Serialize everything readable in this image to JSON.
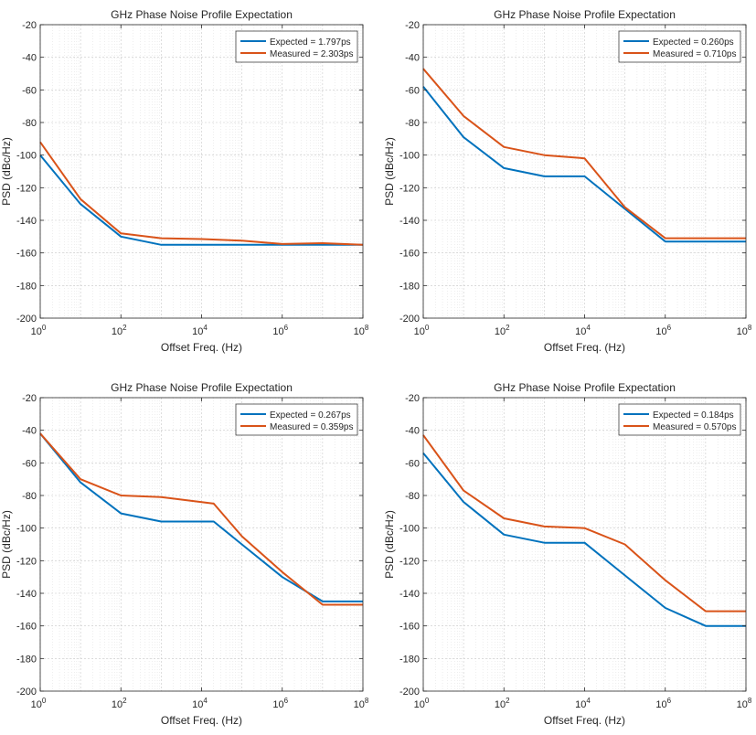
{
  "chart_data": [
    {
      "type": "line",
      "title": "GHz Phase Noise Profile Expectation",
      "xlabel": "Offset Freq. (Hz)",
      "ylabel": "PSD (dBc/Hz)",
      "xscale": "log",
      "xlim": [
        1,
        100000000
      ],
      "ylim": [
        -200,
        -20
      ],
      "grid": true,
      "legend_position": "top-right",
      "xticks": [
        {
          "value": 1,
          "base": "10",
          "exp": "0"
        },
        {
          "value": 100,
          "base": "10",
          "exp": "2"
        },
        {
          "value": 10000,
          "base": "10",
          "exp": "4"
        },
        {
          "value": 1000000,
          "base": "10",
          "exp": "6"
        },
        {
          "value": 100000000,
          "base": "10",
          "exp": "8"
        }
      ],
      "yticks": [
        "-20",
        "-40",
        "-60",
        "-80",
        "-100",
        "-120",
        "-140",
        "-160",
        "-180",
        "-200"
      ],
      "series": [
        {
          "name": "Expected = 1.797ps",
          "color": "#0072BD",
          "x": [
            1,
            10,
            100,
            1000,
            10000,
            100000,
            1000000,
            10000000,
            100000000
          ],
          "y": [
            -100,
            -130,
            -150,
            -155,
            -155,
            -155,
            -155,
            -155,
            -155
          ]
        },
        {
          "name": "Measured = 2.303ps",
          "color": "#D95319",
          "x": [
            1,
            10,
            100,
            1000,
            10000,
            100000,
            1000000,
            10000000,
            100000000
          ],
          "y": [
            -92,
            -127,
            -148,
            -151,
            -151.5,
            -152.5,
            -154.5,
            -154,
            -155
          ]
        }
      ]
    },
    {
      "type": "line",
      "title": "GHz Phase Noise Profile Expectation",
      "xlabel": "Offset Freq. (Hz)",
      "ylabel": "PSD (dBc/Hz)",
      "xscale": "log",
      "xlim": [
        1,
        100000000
      ],
      "ylim": [
        -200,
        -20
      ],
      "grid": true,
      "legend_position": "top-right",
      "xticks": [
        {
          "value": 1,
          "base": "10",
          "exp": "0"
        },
        {
          "value": 100,
          "base": "10",
          "exp": "2"
        },
        {
          "value": 10000,
          "base": "10",
          "exp": "4"
        },
        {
          "value": 1000000,
          "base": "10",
          "exp": "6"
        },
        {
          "value": 100000000,
          "base": "10",
          "exp": "8"
        }
      ],
      "yticks": [
        "-20",
        "-40",
        "-60",
        "-80",
        "-100",
        "-120",
        "-140",
        "-160",
        "-180",
        "-200"
      ],
      "series": [
        {
          "name": "Expected = 0.260ps",
          "color": "#0072BD",
          "x": [
            1,
            10,
            100,
            1000,
            10000,
            100000,
            1000000,
            10000000,
            100000000
          ],
          "y": [
            -58,
            -89,
            -108,
            -113,
            -113,
            -133,
            -153,
            -153,
            -153
          ]
        },
        {
          "name": "Measured = 0.710ps",
          "color": "#D95319",
          "x": [
            1,
            10,
            100,
            1000,
            10000,
            100000,
            1000000,
            10000000,
            100000000
          ],
          "y": [
            -47,
            -76,
            -95,
            -100,
            -102,
            -132,
            -151,
            -151,
            -151
          ]
        }
      ]
    },
    {
      "type": "line",
      "title": "GHz Phase Noise Profile Expectation",
      "xlabel": "Offset Freq. (Hz)",
      "ylabel": "PSD (dBc/Hz)",
      "xscale": "log",
      "xlim": [
        1,
        100000000
      ],
      "ylim": [
        -200,
        -20
      ],
      "grid": true,
      "legend_position": "top-right",
      "xticks": [
        {
          "value": 1,
          "base": "10",
          "exp": "0"
        },
        {
          "value": 100,
          "base": "10",
          "exp": "2"
        },
        {
          "value": 10000,
          "base": "10",
          "exp": "4"
        },
        {
          "value": 1000000,
          "base": "10",
          "exp": "6"
        },
        {
          "value": 100000000,
          "base": "10",
          "exp": "8"
        }
      ],
      "yticks": [
        "-20",
        "-40",
        "-60",
        "-80",
        "-100",
        "-120",
        "-140",
        "-160",
        "-180",
        "-200"
      ],
      "series": [
        {
          "name": "Expected = 0.267ps",
          "color": "#0072BD",
          "x": [
            1,
            10,
            100,
            1000,
            20000,
            100000,
            1000000,
            10000000,
            100000000
          ],
          "y": [
            -42,
            -72,
            -91,
            -96,
            -96,
            -110,
            -130,
            -145,
            -145
          ]
        },
        {
          "name": "Measured = 0.359ps",
          "color": "#D95319",
          "x": [
            1,
            10,
            100,
            1000,
            20000,
            100000,
            1000000,
            10000000,
            100000000
          ],
          "y": [
            -42,
            -70,
            -80,
            -81,
            -85,
            -105,
            -127,
            -147,
            -147
          ]
        }
      ]
    },
    {
      "type": "line",
      "title": "GHz Phase Noise Profile Expectation",
      "xlabel": "Offset Freq. (Hz)",
      "ylabel": "PSD (dBc/Hz)",
      "xscale": "log",
      "xlim": [
        1,
        100000000
      ],
      "ylim": [
        -200,
        -20
      ],
      "grid": true,
      "legend_position": "top-right",
      "xticks": [
        {
          "value": 1,
          "base": "10",
          "exp": "0"
        },
        {
          "value": 100,
          "base": "10",
          "exp": "2"
        },
        {
          "value": 10000,
          "base": "10",
          "exp": "4"
        },
        {
          "value": 1000000,
          "base": "10",
          "exp": "6"
        },
        {
          "value": 100000000,
          "base": "10",
          "exp": "8"
        }
      ],
      "yticks": [
        "-20",
        "-40",
        "-60",
        "-80",
        "-100",
        "-120",
        "-140",
        "-160",
        "-180",
        "-200"
      ],
      "series": [
        {
          "name": "Expected = 0.184ps",
          "color": "#0072BD",
          "x": [
            1,
            10,
            100,
            1000,
            10000,
            100000,
            1000000,
            10000000,
            100000000
          ],
          "y": [
            -54,
            -84,
            -104,
            -109,
            -109,
            -129,
            -149,
            -160,
            -160
          ]
        },
        {
          "name": "Measured = 0.570ps",
          "color": "#D95319",
          "x": [
            1,
            10,
            100,
            1000,
            10000,
            100000,
            1000000,
            10000000,
            100000000
          ],
          "y": [
            -43,
            -77,
            -94,
            -99,
            -100,
            -110,
            -132,
            -151,
            -151
          ]
        }
      ]
    }
  ]
}
